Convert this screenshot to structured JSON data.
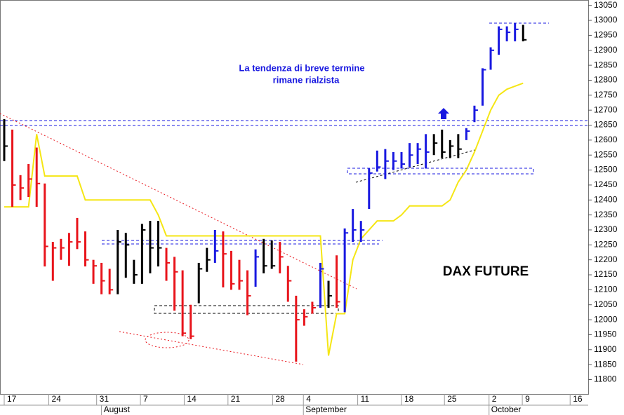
{
  "chart_data": {
    "type": "ohlc",
    "title": "DAX FUTURE",
    "annotation": [
      "La tendenza di breve termine",
      "rimane rialzista"
    ],
    "x": [
      0,
      1,
      2,
      3,
      4,
      5,
      6,
      7,
      8,
      9,
      10,
      11,
      12,
      13,
      14,
      15,
      16,
      17,
      18,
      19,
      20,
      21,
      22,
      23,
      24,
      25,
      26,
      27,
      28,
      29,
      30,
      31,
      32,
      33,
      34,
      35,
      36,
      37,
      38,
      39,
      40,
      41,
      42,
      43,
      44,
      45,
      46,
      47,
      48,
      49,
      50,
      51,
      52,
      53,
      54,
      55,
      56,
      57,
      58,
      59,
      60,
      61,
      62,
      63,
      64
    ],
    "high": [
      12670,
      12635,
      12483,
      12520,
      12575,
      12455,
      12260,
      12270,
      12290,
      12340,
      12295,
      12200,
      12190,
      12170,
      12300,
      12290,
      12200,
      12320,
      12330,
      12330,
      12240,
      12210,
      12165,
      12050,
      12190,
      12240,
      12300,
      12295,
      12230,
      12200,
      12165,
      12235,
      12270,
      12265,
      12260,
      12180,
      12080,
      12035,
      12060,
      12190,
      12130,
      12215,
      12305,
      12370,
      12330,
      12505,
      12565,
      12570,
      12560,
      12560,
      12590,
      12590,
      12620,
      12620,
      12635,
      12600,
      12620,
      12640,
      12715,
      12840,
      12910,
      12980,
      12980,
      12990,
      12985
    ],
    "low": [
      12530,
      12377,
      12400,
      12410,
      12377,
      12178,
      12130,
      12200,
      12180,
      12236,
      12178,
      12120,
      12085,
      12085,
      12085,
      12140,
      12120,
      12120,
      12155,
      12178,
      12130,
      12030,
      11945,
      11935,
      12055,
      12160,
      12190,
      12108,
      12100,
      12100,
      12015,
      12110,
      12155,
      12170,
      12155,
      12060,
      11860,
      11980,
      12020,
      12040,
      12040,
      12040,
      12025,
      12260,
      12260,
      12370,
      12495,
      12470,
      12500,
      12505,
      12510,
      12520,
      12505,
      12550,
      12540,
      12540,
      12540,
      12600,
      12660,
      12715,
      12835,
      12885,
      12930,
      12930,
      12930
    ],
    "close": [
      12580,
      12450,
      12440,
      12470,
      12455,
      12245,
      12240,
      12240,
      12260,
      12260,
      12200,
      12180,
      12130,
      12100,
      12260,
      12250,
      12150,
      12300,
      12240,
      12240,
      12190,
      12160,
      11955,
      11945,
      12170,
      12200,
      12230,
      12220,
      12120,
      12130,
      12080,
      12210,
      12180,
      12180,
      12210,
      12130,
      12000,
      12010,
      12040,
      12170,
      12080,
      12060,
      12290,
      12300,
      12300,
      12490,
      12510,
      12530,
      12530,
      12520,
      12550,
      12570,
      12560,
      12590,
      12560,
      12580,
      12570,
      12630,
      12700,
      12835,
      12900,
      12970,
      12960,
      12970,
      12935
    ],
    "bar_colors": [
      "#000000",
      "#e8141b",
      "#e8141b",
      "#e8141b",
      "#e8141b",
      "#e8141b",
      "#e8141b",
      "#e8141b",
      "#e8141b",
      "#e8141b",
      "#e8141b",
      "#e8141b",
      "#e8141b",
      "#e8141b",
      "#000000",
      "#000000",
      "#000000",
      "#000000",
      "#000000",
      "#000000",
      "#e8141b",
      "#e8141b",
      "#e8141b",
      "#e8141b",
      "#000000",
      "#000000",
      "#1818e0",
      "#e8141b",
      "#e8141b",
      "#e8141b",
      "#e8141b",
      "#1818e0",
      "#000000",
      "#000000",
      "#e8141b",
      "#e8141b",
      "#e8141b",
      "#e8141b",
      "#e8141b",
      "#1818e0",
      "#000000",
      "#e8141b",
      "#1818e0",
      "#1818e0",
      "#1818e0",
      "#1818e0",
      "#1818e0",
      "#1818e0",
      "#1818e0",
      "#1818e0",
      "#1818e0",
      "#1818e0",
      "#1818e0",
      "#000000",
      "#000000",
      "#000000",
      "#000000",
      "#1818e0",
      "#1818e0",
      "#1818e0",
      "#1818e0",
      "#1818e0",
      "#1818e0",
      "#1818e0",
      "#000000"
    ],
    "stop_line": {
      "color": "#f5e614",
      "values": [
        12377,
        12377,
        12377,
        12377,
        12620,
        12480,
        12480,
        12480,
        12480,
        12480,
        12400,
        12400,
        12400,
        12400,
        12400,
        12400,
        12400,
        12400,
        12400,
        12350,
        12280,
        12280,
        12280,
        12280,
        12280,
        12280,
        12280,
        12280,
        12280,
        12280,
        12280,
        12280,
        12280,
        12280,
        12280,
        12280,
        12280,
        12280,
        12280,
        12280,
        11880,
        12020,
        12020,
        12200,
        12270,
        12300,
        12330,
        12330,
        12330,
        12350,
        12380,
        12380,
        12380,
        12380,
        12380,
        12400,
        12460,
        12500,
        12560,
        12630,
        12700,
        12750,
        12770,
        12780,
        12790
      ]
    },
    "xlim": [
      -0.52,
      72.03
    ],
    "xticks": [
      {
        "value": 0,
        "label": "17"
      },
      {
        "value": 5.5,
        "label": "24"
      },
      {
        "value": 11.4,
        "label": "31"
      },
      {
        "value": 16.8,
        "label": "7"
      },
      {
        "value": 22.2,
        "label": "14"
      },
      {
        "value": 27.6,
        "label": "21"
      },
      {
        "value": 33.1,
        "label": "28"
      },
      {
        "value": 36.9,
        "label": "4"
      },
      {
        "value": 43.6,
        "label": "11"
      },
      {
        "value": 49,
        "label": "18"
      },
      {
        "value": 54.3,
        "label": "25"
      },
      {
        "value": 59.8,
        "label": "2"
      },
      {
        "value": 63.9,
        "label": "9"
      },
      {
        "value": 69.8,
        "label": "16"
      }
    ],
    "months": [
      {
        "value": 12,
        "label": "August"
      },
      {
        "value": 36.9,
        "label": "September"
      },
      {
        "value": 59.8,
        "label": "October"
      }
    ],
    "ylim": [
      11752,
      13068
    ],
    "yticks": [
      11800,
      11850,
      11900,
      11950,
      12000,
      12050,
      12100,
      12150,
      12200,
      12250,
      12300,
      12350,
      12400,
      12450,
      12500,
      12550,
      12600,
      12650,
      12700,
      12750,
      12800,
      12850,
      12900,
      12950,
      13000,
      13050
    ],
    "grid": false
  }
}
